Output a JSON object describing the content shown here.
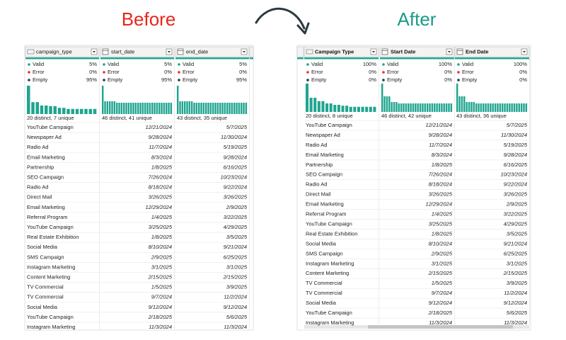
{
  "before": {
    "title": "Before",
    "columns": [
      {
        "name": "campaign_type",
        "type": "text",
        "valid": "5%",
        "error": "0%",
        "empty": "95%",
        "distinct": "20 distinct, 7 unique",
        "distribution": [
          100,
          42,
          42,
          30,
          30,
          28,
          28,
          22,
          22,
          18,
          18,
          18,
          18,
          18,
          18,
          18
        ]
      },
      {
        "name": "start_date",
        "type": "date",
        "valid": "5%",
        "error": "0%",
        "empty": "95%",
        "distinct": "46 distinct, 41 unique",
        "distribution": [
          100,
          45,
          45,
          45,
          45,
          45,
          40,
          40,
          40,
          40,
          40,
          40,
          40,
          40,
          40,
          40,
          40,
          40,
          40,
          40,
          40,
          40,
          40,
          40,
          40,
          40,
          40,
          40,
          40,
          40
        ]
      },
      {
        "name": "end_date",
        "type": "date",
        "valid": "5%",
        "error": "0%",
        "empty": "95%",
        "distinct": "43 distinct, 35 unique",
        "distribution": [
          100,
          45,
          45,
          45,
          45,
          45,
          45,
          40,
          40,
          40,
          40,
          40,
          40,
          40,
          40,
          40,
          40,
          40,
          40,
          40,
          40,
          40,
          40,
          40,
          40,
          40,
          40,
          40,
          40,
          40
        ]
      }
    ],
    "rows": [
      [
        "YouTube Campaign",
        "12/21/2024",
        "5/7/2025"
      ],
      [
        "Newspaper Ad",
        "9/28/2024",
        "11/30/2024"
      ],
      [
        "Radio Ad",
        "11/7/2024",
        "5/19/2025"
      ],
      [
        "Email Marketing",
        "8/3/2024",
        "9/28/2024"
      ],
      [
        "Partnership",
        "1/8/2025",
        "6/16/2025"
      ],
      [
        "SEO Campaign",
        "7/26/2024",
        "10/23/2024"
      ],
      [
        "Radio Ad",
        "8/18/2024",
        "9/22/2024"
      ],
      [
        "Direct Mail",
        "3/26/2025",
        "3/26/2025"
      ],
      [
        "Email Marketing",
        "12/29/2024",
        "2/9/2025"
      ],
      [
        "Referral Program",
        "1/4/2025",
        "3/22/2025"
      ],
      [
        "YouTube Campaign",
        "3/25/2025",
        "4/29/2025"
      ],
      [
        "Real Estate Exhibition",
        "1/8/2025",
        "3/5/2025"
      ],
      [
        "Social Media",
        "8/10/2024",
        "9/21/2024"
      ],
      [
        "SMS Campaign",
        "2/9/2025",
        "6/25/2025"
      ],
      [
        "Instagram Marketing",
        "3/1/2025",
        "3/1/2025"
      ],
      [
        "Content Marketing",
        "2/15/2025",
        "2/15/2025"
      ],
      [
        "TV Commercial",
        "1/5/2025",
        "3/9/2025"
      ],
      [
        "TV Commercial",
        "9/7/2024",
        "11/2/2024"
      ],
      [
        "Social Media",
        "9/12/2024",
        "9/12/2024"
      ],
      [
        "YouTube Campaign",
        "2/18/2025",
        "5/6/2025"
      ],
      [
        "Instagram Marketing",
        "11/3/2024",
        "11/3/2024"
      ]
    ]
  },
  "after": {
    "title": "After",
    "columns": [
      {
        "name": "Campaign Type",
        "type": "text",
        "valid": "100%",
        "error": "0%",
        "empty": "0%",
        "distinct": "20 distinct, 8 unique",
        "distribution": [
          100,
          50,
          50,
          38,
          38,
          30,
          30,
          25,
          25,
          22,
          22,
          18,
          18,
          18,
          18,
          18,
          18,
          18
        ]
      },
      {
        "name": "Start Date",
        "type": "date",
        "valid": "100%",
        "error": "0%",
        "empty": "0%",
        "distinct": "46 distinct, 42 unique",
        "distribution": [
          100,
          55,
          55,
          55,
          35,
          35,
          35,
          30,
          30,
          30,
          30,
          30,
          30,
          30,
          30,
          30,
          30,
          30,
          30,
          30,
          30,
          30,
          30,
          30,
          30,
          30,
          30,
          30,
          30,
          30
        ]
      },
      {
        "name": "End Date",
        "type": "date",
        "valid": "100%",
        "error": "0%",
        "empty": "0%",
        "distinct": "43 distinct, 36 unique",
        "distribution": [
          100,
          55,
          55,
          55,
          35,
          35,
          35,
          35,
          30,
          30,
          30,
          30,
          30,
          30,
          30,
          30,
          30,
          30,
          30,
          30,
          30,
          30,
          30,
          30,
          30,
          30,
          30,
          30,
          30,
          30
        ]
      }
    ],
    "rows": [
      [
        "YouTube Campaign",
        "12/21/2024",
        "5/7/2025"
      ],
      [
        "Newspaper Ad",
        "9/28/2024",
        "11/30/2024"
      ],
      [
        "Radio Ad",
        "11/7/2024",
        "5/19/2025"
      ],
      [
        "Email Marketing",
        "8/3/2024",
        "9/28/2024"
      ],
      [
        "Partnership",
        "1/8/2025",
        "6/16/2025"
      ],
      [
        "SEO Campaign",
        "7/26/2024",
        "10/23/2024"
      ],
      [
        "Radio Ad",
        "8/18/2024",
        "9/22/2024"
      ],
      [
        "Direct Mail",
        "3/26/2025",
        "3/26/2025"
      ],
      [
        "Email Marketing",
        "12/29/2024",
        "2/9/2025"
      ],
      [
        "Referral Program",
        "1/4/2025",
        "3/22/2025"
      ],
      [
        "YouTube Campaign",
        "3/25/2025",
        "4/29/2025"
      ],
      [
        "Real Estate Exhibition",
        "1/8/2025",
        "3/5/2025"
      ],
      [
        "Social Media",
        "8/10/2024",
        "9/21/2024"
      ],
      [
        "SMS Campaign",
        "2/9/2025",
        "6/25/2025"
      ],
      [
        "Instagram Marketing",
        "3/1/2025",
        "3/1/2025"
      ],
      [
        "Content Marketing",
        "2/15/2025",
        "2/15/2025"
      ],
      [
        "TV Commercial",
        "1/5/2025",
        "3/9/2025"
      ],
      [
        "TV Commercial",
        "9/7/2024",
        "11/2/2024"
      ],
      [
        "Social Media",
        "9/12/2024",
        "9/12/2024"
      ],
      [
        "YouTube Campaign",
        "2/18/2025",
        "5/6/2025"
      ],
      [
        "Instagram Marketing",
        "11/3/2024",
        "11/3/2024"
      ]
    ]
  },
  "profile_labels": [
    "Valid",
    "Error",
    "Empty"
  ]
}
